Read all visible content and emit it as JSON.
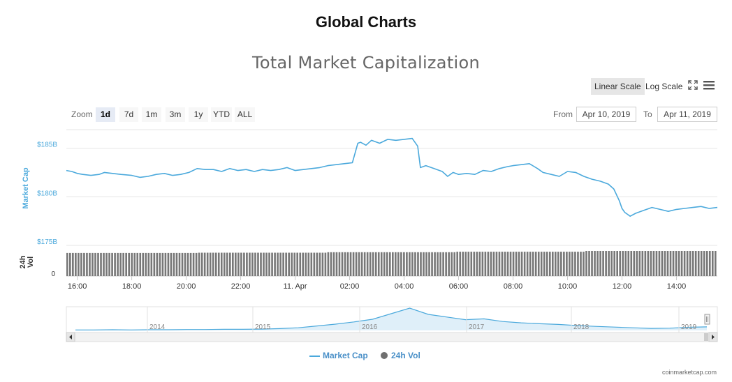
{
  "page_title": "Global Charts",
  "toolbar": {
    "linear_scale": "Linear Scale",
    "log_scale": "Log Scale",
    "zoom_label": "Zoom",
    "zoom_buttons": [
      "1d",
      "7d",
      "1m",
      "3m",
      "1y",
      "YTD",
      "ALL"
    ],
    "from_label": "From",
    "from_value": "Apr 10, 2019",
    "to_label": "To",
    "to_value": "Apr 11, 2019"
  },
  "credit": "coinmarketcap.com",
  "colors": {
    "market_cap": "#4ba9dc",
    "volume": "#7a7a7a",
    "active_scale_bg": "#e6e6e6",
    "grid": "#e6e6e6"
  },
  "icons": [
    "fullscreen-icon",
    "hamburger-menu-icon",
    "scroll-left-icon",
    "scroll-right-icon"
  ],
  "chart_data": {
    "type": "line",
    "title": "Total Market Capitalization",
    "y_axis_label": "Market Cap",
    "y_ticks": [
      "$185B",
      "$180B",
      "$175B"
    ],
    "ylim": [
      175,
      186.9
    ],
    "vol_axis_label": "24h Vol",
    "vol_ticks": [
      "0"
    ],
    "x_ticks": [
      "16:00",
      "18:00",
      "20:00",
      "22:00",
      "11. Apr",
      "02:00",
      "04:00",
      "06:00",
      "08:00",
      "10:00",
      "12:00",
      "14:00"
    ],
    "x_tick_hours": [
      16,
      18,
      20,
      22,
      24,
      26,
      28,
      30,
      32,
      34,
      36,
      38
    ],
    "x_range_hours": [
      15.6,
      39.5
    ],
    "series": [
      {
        "name": "Market Cap",
        "unit": "billion USD",
        "x_hours": [
          15.6,
          15.8,
          16.0,
          16.2,
          16.5,
          16.8,
          17.0,
          17.3,
          17.6,
          18.0,
          18.3,
          18.6,
          18.9,
          19.2,
          19.5,
          19.8,
          20.1,
          20.4,
          20.7,
          21.0,
          21.3,
          21.6,
          21.9,
          22.2,
          22.5,
          22.8,
          23.1,
          23.4,
          23.7,
          24.0,
          24.3,
          24.6,
          24.9,
          25.2,
          25.5,
          25.8,
          26.1,
          26.3,
          26.4,
          26.6,
          26.8,
          27.1,
          27.4,
          27.7,
          28.0,
          28.3,
          28.5,
          28.6,
          28.8,
          29.1,
          29.4,
          29.6,
          29.8,
          30.0,
          30.3,
          30.6,
          30.9,
          31.2,
          31.5,
          31.8,
          32.0,
          32.3,
          32.6,
          32.9,
          33.1,
          33.4,
          33.7,
          34.0,
          34.3,
          34.6,
          34.9,
          35.2,
          35.5,
          35.7,
          35.9,
          36.0,
          36.1,
          36.2,
          36.3,
          36.5,
          36.8,
          37.1,
          37.4,
          37.7,
          38.0,
          38.3,
          38.6,
          38.9,
          39.2,
          39.5
        ],
        "values": [
          182.7,
          182.6,
          182.4,
          182.3,
          182.2,
          182.3,
          182.5,
          182.4,
          182.3,
          182.2,
          182.0,
          182.1,
          182.3,
          182.4,
          182.2,
          182.3,
          182.5,
          182.9,
          182.8,
          182.8,
          182.6,
          182.9,
          182.7,
          182.8,
          182.6,
          182.8,
          182.7,
          182.8,
          183.0,
          182.7,
          182.8,
          182.9,
          183.0,
          183.2,
          183.3,
          183.4,
          183.5,
          185.5,
          185.6,
          185.3,
          185.8,
          185.5,
          185.9,
          185.8,
          185.9,
          186.0,
          185.2,
          183.0,
          183.2,
          182.9,
          182.6,
          182.1,
          182.5,
          182.3,
          182.4,
          182.3,
          182.7,
          182.6,
          182.9,
          183.1,
          183.2,
          183.3,
          183.4,
          182.9,
          182.5,
          182.3,
          182.1,
          182.6,
          182.5,
          182.1,
          181.8,
          181.6,
          181.3,
          180.8,
          179.6,
          178.8,
          178.4,
          178.2,
          178.0,
          178.3,
          178.6,
          178.9,
          178.7,
          178.5,
          178.7,
          178.8,
          178.9,
          179.0,
          178.8,
          178.9
        ]
      },
      {
        "name": "24h Vol",
        "type": "bar",
        "relative_level": [
          0.92,
          0.93,
          0.95,
          0.97,
          1.0
        ]
      }
    ],
    "navigator": {
      "year_labels": [
        "2014",
        "2015",
        "2016",
        "2017",
        "2018",
        "2019"
      ],
      "relative_values": [
        0.02,
        0.02,
        0.03,
        0.02,
        0.03,
        0.03,
        0.04,
        0.04,
        0.05,
        0.05,
        0.06,
        0.08,
        0.12,
        0.2,
        0.28,
        0.38,
        0.5,
        0.75,
        1.0,
        0.72,
        0.6,
        0.48,
        0.52,
        0.4,
        0.34,
        0.3,
        0.27,
        0.22,
        0.18,
        0.15,
        0.12,
        0.09,
        0.1,
        0.14,
        0.16
      ]
    }
  },
  "legend": {
    "market_cap": "Market Cap",
    "volume": "24h Vol"
  }
}
